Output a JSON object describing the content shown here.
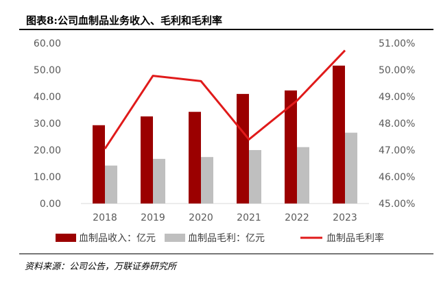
{
  "header": {
    "title": "图表8:公司血制品业务收入、毛利和毛利率"
  },
  "footer": {
    "source": "资料来源：公司公告，万联证券研究所"
  },
  "colors": {
    "revenue": "#9b0000",
    "gross_profit": "#bfbfbf",
    "margin_line": "#e01a1a"
  },
  "chart_data": {
    "type": "bar",
    "categories": [
      "2018",
      "2019",
      "2020",
      "2021",
      "2022",
      "2023"
    ],
    "series": [
      {
        "name": "血制品收入：亿元",
        "type": "bar",
        "axis": "left",
        "values": [
          29.3,
          32.6,
          34.3,
          41.0,
          42.3,
          51.6
        ]
      },
      {
        "name": "血制品毛利：亿元",
        "type": "bar",
        "axis": "left",
        "values": [
          14.2,
          16.7,
          17.4,
          20.0,
          21.1,
          26.5
        ]
      },
      {
        "name": "血制品毛利率",
        "type": "line",
        "axis": "right",
        "values": [
          47.05,
          49.78,
          49.58,
          47.4,
          48.85,
          50.73
        ]
      }
    ],
    "left_axis": {
      "ylim": [
        0,
        60
      ],
      "ticks": [
        "0.00",
        "10.00",
        "20.00",
        "30.00",
        "40.00",
        "50.00",
        "60.00"
      ]
    },
    "right_axis": {
      "ylim": [
        45,
        51
      ],
      "ticks": [
        "45.00%",
        "46.00%",
        "47.00%",
        "48.00%",
        "49.00%",
        "50.00%",
        "51.00%"
      ]
    },
    "grid": false,
    "legend_position": "bottom"
  }
}
